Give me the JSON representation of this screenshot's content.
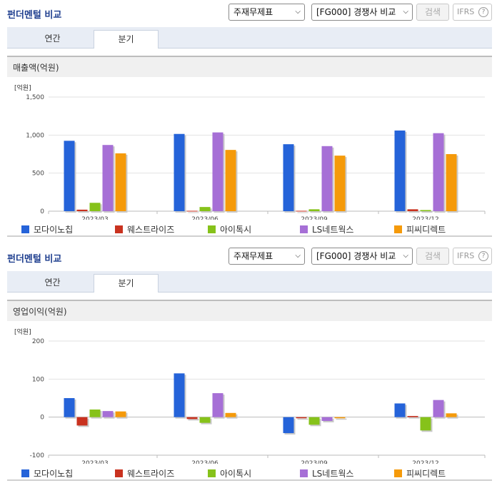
{
  "panels": [
    {
      "title": "펀더멘털 비교",
      "statement_select": "주재무제표",
      "compare_select": "[FG000] 경쟁사 비교",
      "search_label": "검색",
      "ifrs_label": "IFRS",
      "help_glyph": "?",
      "tabs": [
        {
          "label": "연간",
          "active": false
        },
        {
          "label": "분기",
          "active": true
        }
      ],
      "section_title": "매출액(억원)"
    },
    {
      "title": "펀더멘털 비교",
      "statement_select": "주재무제표",
      "compare_select": "[FG000] 경쟁사 비교",
      "search_label": "검색",
      "ifrs_label": "IFRS",
      "help_glyph": "?",
      "tabs": [
        {
          "label": "연간",
          "active": false
        },
        {
          "label": "분기",
          "active": true
        }
      ],
      "section_title": "영업이익(억원)"
    }
  ],
  "chart_data": [
    {
      "type": "bar",
      "title": "매출액(억원)",
      "unit_label": "[억원]",
      "categories": [
        "2023/03",
        "2023/06",
        "2023/09",
        "2023/12"
      ],
      "ylim": [
        0,
        1500
      ],
      "yticks": [
        0,
        500,
        1000,
        1500
      ],
      "ytick_labels": [
        "0",
        "500",
        "1,000",
        "1,500"
      ],
      "grid": true,
      "legend": "bottom",
      "series": [
        {
          "name": "모다이노칩",
          "color": "#2563d9",
          "values": [
            925,
            1015,
            880,
            1060
          ]
        },
        {
          "name": "웨스트라이즈",
          "color": "#c9321f",
          "values": [
            20,
            5,
            5,
            25
          ]
        },
        {
          "name": "아이톡시",
          "color": "#86c21a",
          "values": [
            110,
            55,
            25,
            15
          ]
        },
        {
          "name": "LS네트웍스",
          "color": "#a66fd6",
          "values": [
            870,
            1035,
            855,
            1025
          ]
        },
        {
          "name": "피씨디렉트",
          "color": "#f59a0a",
          "values": [
            760,
            805,
            730,
            750
          ]
        }
      ]
    },
    {
      "type": "bar",
      "title": "영업이익(억원)",
      "unit_label": "[억원]",
      "categories": [
        "2023/03",
        "2023/06",
        "2023/09",
        "2023/12"
      ],
      "ylim": [
        -100,
        200
      ],
      "yticks": [
        -100,
        0,
        100,
        200
      ],
      "ytick_labels": [
        "-100",
        "0",
        "100",
        "200"
      ],
      "grid": true,
      "legend": "bottom",
      "series": [
        {
          "name": "모다이노칩",
          "color": "#2563d9",
          "values": [
            50,
            115,
            -42,
            36
          ]
        },
        {
          "name": "웨스트라이즈",
          "color": "#c9321f",
          "values": [
            -22,
            -5,
            -3,
            3
          ]
        },
        {
          "name": "아이톡시",
          "color": "#86c21a",
          "values": [
            20,
            -15,
            -20,
            -35
          ]
        },
        {
          "name": "LS네트웍스",
          "color": "#a66fd6",
          "values": [
            16,
            63,
            -10,
            45
          ]
        },
        {
          "name": "피씨디렉트",
          "color": "#f59a0a",
          "values": [
            15,
            11,
            -3,
            10
          ]
        }
      ]
    }
  ]
}
